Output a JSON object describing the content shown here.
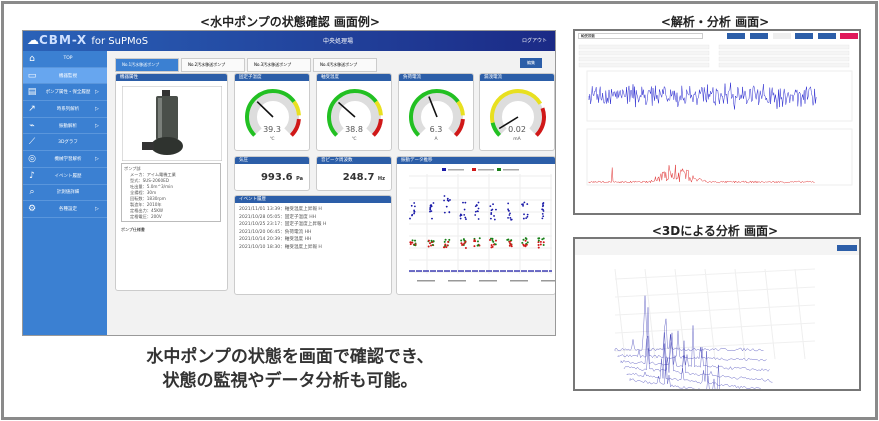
{
  "titles": {
    "main": "<水中ポンプの状態確認 画面例>",
    "analysis": "<解析・分析 画面>",
    "three_d": "<3Dによる分析 画面>"
  },
  "caption": [
    "水中ポンプの状態を画面で確認でき、",
    "状態の監視やデータ分析も可能。"
  ],
  "app": {
    "logo": "CBM-X",
    "logo_suffix": "for SuPMoS",
    "site": "中央処理場",
    "logout": "ログアウト",
    "edit": "編集"
  },
  "sidebar": [
    {
      "label": "TOP",
      "icon": "home-icon",
      "arrow": false
    },
    {
      "label": "機器監視",
      "icon": "monitor-icon",
      "arrow": false,
      "active": true
    },
    {
      "label": "ポンプ属性・保全履歴",
      "icon": "clipboard-icon",
      "arrow": true
    },
    {
      "label": "時系列解析",
      "icon": "line-chart-icon",
      "arrow": true
    },
    {
      "label": "振動解析",
      "icon": "vibration-icon",
      "arrow": true
    },
    {
      "label": "3Dグラフ",
      "icon": "3d-graph-icon",
      "arrow": false
    },
    {
      "label": "機械学習解析",
      "icon": "ai-icon",
      "arrow": true
    },
    {
      "label": "イベント履歴",
      "icon": "bell-icon",
      "arrow": false
    },
    {
      "label": "計測値詳細",
      "icon": "search-doc-icon",
      "arrow": false
    },
    {
      "label": "各種設定",
      "icon": "gear-icon",
      "arrow": true
    }
  ],
  "tabs": [
    "No.1汚水移送ポンプ",
    "No.2汚水移送ポンプ",
    "No.3汚水移送ポンプ",
    "No.4汚水移送ポンプ"
  ],
  "attributes": {
    "title": "機器属性",
    "section": "ポンプ部",
    "specs": [
      "メーカ：アイム電機工業",
      "型式：SUS-2060ED",
      "吐出量：5.0m^3/min",
      "全揚程：30m",
      "回転数：1830rpm",
      "製造年：2010年",
      "定格出力：45KW",
      "定格電圧：200V"
    ],
    "link": "ポンプ仕様書"
  },
  "gauges": [
    {
      "title": "固定子温度",
      "value": "39.3",
      "unit": "℃",
      "fraction": 0.33,
      "color_zones": "green-yellow-red"
    },
    {
      "title": "軸受温度",
      "value": "38.8",
      "unit": "℃",
      "fraction": 0.32,
      "color_zones": "green-yellow-red"
    },
    {
      "title": "負荷電流",
      "value": "6.3",
      "unit": "A",
      "fraction": 0.42,
      "color_zones": "green-yellow-red"
    },
    {
      "title": "漏洩電流",
      "value": "0.02",
      "unit": "mA",
      "fraction": 0.05,
      "color_zones": "green-yellow-red"
    }
  ],
  "pressure": {
    "title": "気圧",
    "value": "993.6",
    "unit": "Pa"
  },
  "peak": {
    "title": "音ピーク周波数",
    "value": "248.7",
    "unit": "Hz"
  },
  "events": {
    "title": "イベント履歴",
    "items": [
      "2021/11/01 13:39：軸受温度上昇報 H",
      "2021/10/28 05:05：固定子温度 HH",
      "2021/10/25 23:17：固定子温度上昇報 H",
      "2021/10/20 06:45：負荷電流 HH",
      "2021/10/14 20:39：軸受温度 HH",
      "2021/10/10 18:30：軸受温度上昇報 H"
    ]
  },
  "vibration": {
    "title": "振動データ推移",
    "colors": {
      "series1": "#1a1aa8",
      "series2": "#d01818",
      "series3": "#188018"
    }
  },
  "analysis": {
    "title": "軸受振動",
    "colors": {
      "wave": "#2a2ad0",
      "spectrum": "#e03030"
    }
  },
  "colors": {
    "sidebar": "#3b80d2",
    "header": "#1b2a86",
    "panel_header": "#2c5ea8"
  }
}
